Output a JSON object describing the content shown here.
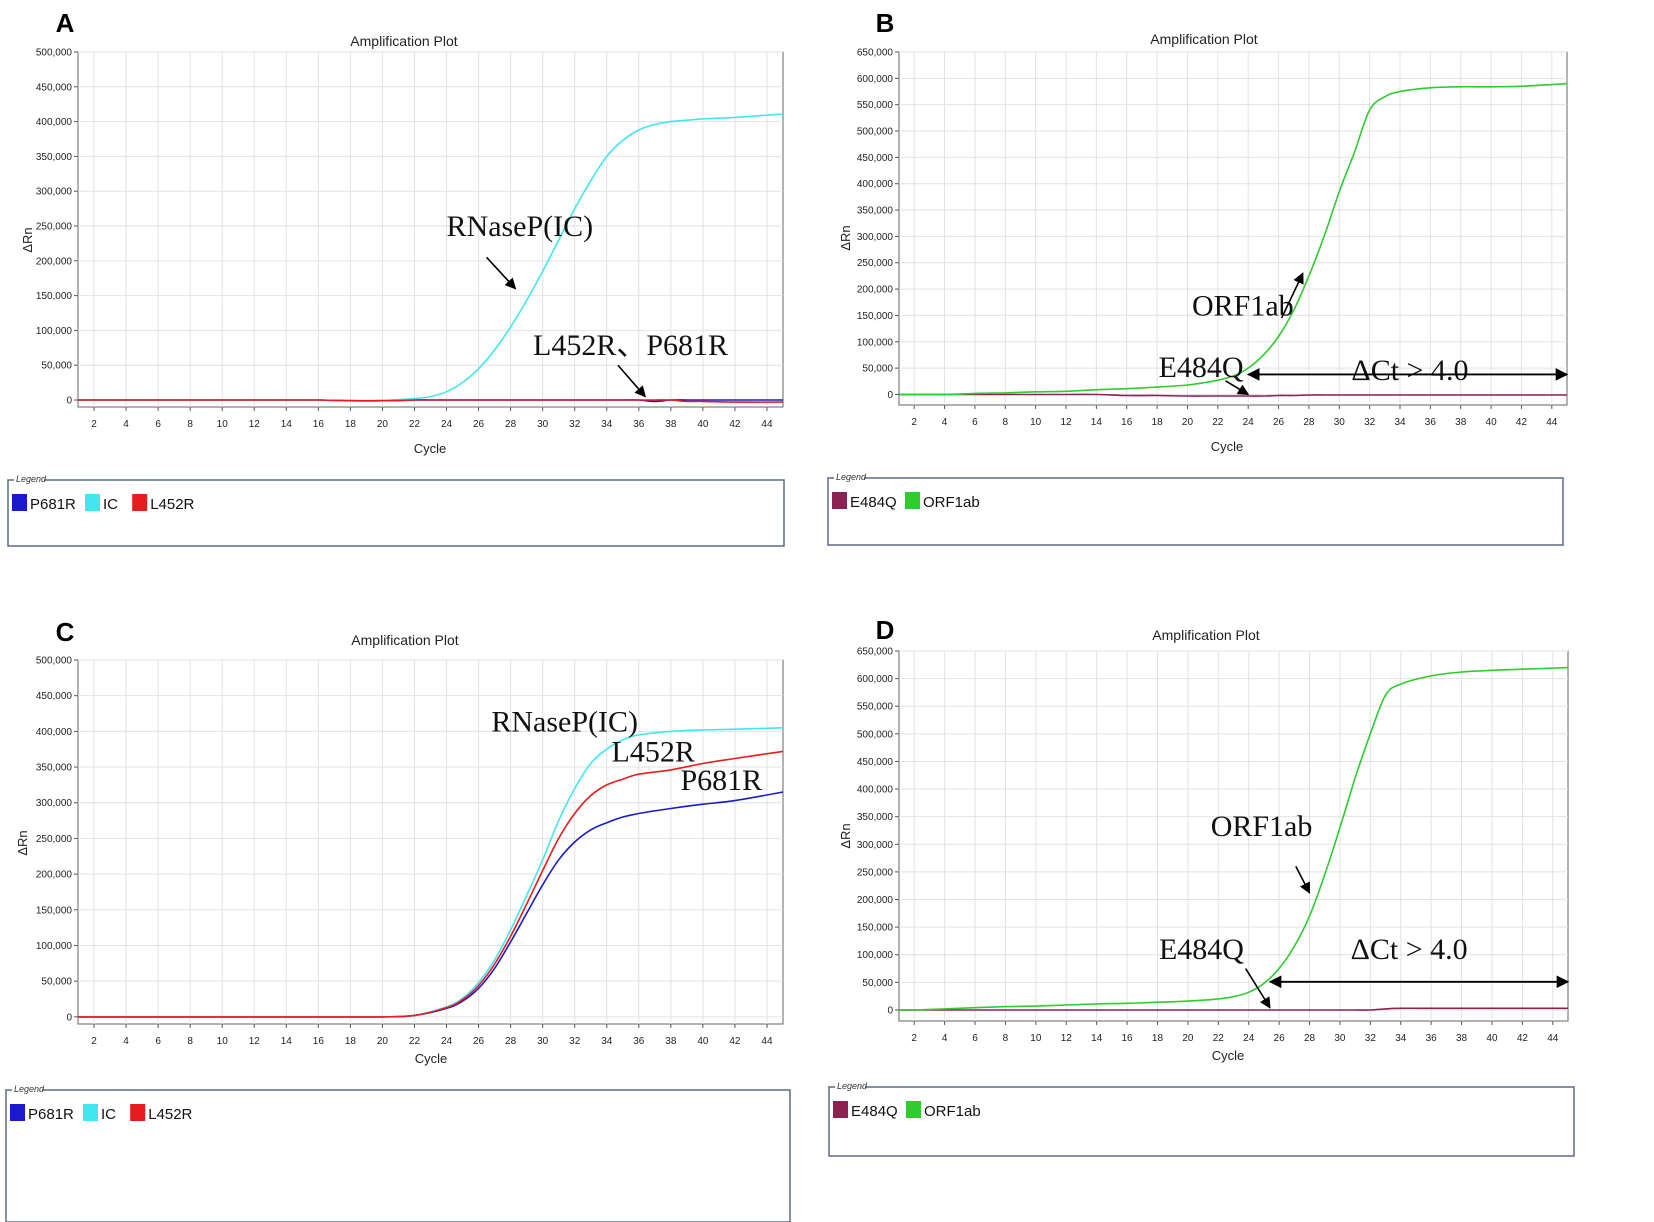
{
  "chart_data": [
    {
      "panel": "A",
      "type": "line",
      "title": "Amplification Plot",
      "xlabel": "Cycle",
      "ylabel": "ΔRn",
      "xlim": [
        1,
        45
      ],
      "ylim": [
        -10000,
        500000
      ],
      "y_ticks": [
        0,
        50000,
        100000,
        150000,
        200000,
        250000,
        300000,
        350000,
        400000,
        450000,
        500000
      ],
      "y_tick_labels": [
        "0",
        "50,000",
        "100,000",
        "150,000",
        "200,000",
        "250,000",
        "300,000",
        "350,000",
        "400,000",
        "450,000",
        "500,000"
      ],
      "x_ticks": [
        2,
        4,
        6,
        8,
        10,
        12,
        14,
        16,
        18,
        20,
        22,
        24,
        26,
        28,
        30,
        32,
        34,
        36,
        38,
        40,
        42,
        44
      ],
      "grid": true,
      "x": [
        1,
        2,
        4,
        6,
        8,
        10,
        12,
        14,
        16,
        18,
        20,
        22,
        23,
        24,
        25,
        26,
        27,
        28,
        29,
        30,
        31,
        32,
        33,
        34,
        35,
        36,
        37,
        38,
        39,
        40,
        42,
        45
      ],
      "series": [
        {
          "name": "P681R",
          "color": "#1a1acc",
          "values": [
            0,
            0,
            0,
            0,
            0,
            0,
            0,
            0,
            0,
            -1000,
            -1000,
            0,
            0,
            0,
            0,
            0,
            0,
            0,
            0,
            0,
            0,
            0,
            0,
            0,
            0,
            0,
            -2000,
            0,
            0,
            0,
            0,
            0
          ]
        },
        {
          "name": "IC",
          "color": "#40e8ee",
          "values": [
            0,
            0,
            0,
            0,
            0,
            0,
            0,
            0,
            0,
            -1000,
            -500,
            2000,
            5000,
            12000,
            25000,
            45000,
            72000,
            105000,
            143000,
            185000,
            230000,
            275000,
            315000,
            350000,
            373000,
            388000,
            396000,
            400000,
            402000,
            404000,
            406000,
            411000
          ]
        },
        {
          "name": "L452R",
          "color": "#e81c1c",
          "values": [
            0,
            0,
            0,
            0,
            0,
            0,
            0,
            0,
            0,
            -1000,
            -1000,
            0,
            0,
            0,
            0,
            0,
            0,
            0,
            0,
            0,
            0,
            0,
            0,
            0,
            0,
            0,
            0,
            0,
            -2000,
            -2000,
            -3000,
            -3000
          ]
        }
      ],
      "annotations": [
        {
          "text": "RNaseP(IC)",
          "x": 24.0,
          "y": 236000,
          "arrow_from": [
            26.5,
            205000
          ],
          "arrow_to": [
            28.3,
            160000
          ]
        },
        {
          "text": "L452R、P681R",
          "x": 29.4,
          "y": 65000,
          "arrow_from": [
            34.7,
            50000
          ],
          "arrow_to": [
            36.4,
            5000
          ]
        }
      ],
      "legend": [
        "P681R",
        "IC",
        "L452R"
      ],
      "legend_title": "Legend"
    },
    {
      "panel": "B",
      "type": "line",
      "title": "Amplification Plot",
      "xlabel": "Cycle",
      "ylabel": "ΔRn",
      "xlim": [
        1,
        45
      ],
      "ylim": [
        -20000,
        650000
      ],
      "y_ticks": [
        0,
        50000,
        100000,
        150000,
        200000,
        250000,
        300000,
        350000,
        400000,
        450000,
        500000,
        550000,
        600000,
        650000
      ],
      "y_tick_labels": [
        "0",
        "50,000",
        "100,000",
        "150,000",
        "200,000",
        "250,000",
        "300,000",
        "350,000",
        "400,000",
        "450,000",
        "500,000",
        "550,000",
        "600,000",
        "650,000"
      ],
      "x_ticks": [
        2,
        4,
        6,
        8,
        10,
        12,
        14,
        16,
        18,
        20,
        22,
        24,
        26,
        28,
        30,
        32,
        34,
        36,
        38,
        40,
        42,
        44
      ],
      "grid": true,
      "x": [
        1,
        2,
        4,
        6,
        8,
        10,
        12,
        14,
        16,
        18,
        20,
        21,
        22,
        23,
        24,
        25,
        26,
        27,
        28,
        29,
        30,
        31,
        32,
        33,
        34,
        36,
        38,
        40,
        42,
        45
      ],
      "series": [
        {
          "name": "E484Q",
          "color": "#8b2252",
          "values": [
            0,
            0,
            0,
            0,
            0,
            0,
            0,
            0,
            -2000,
            -2000,
            -3000,
            -3000,
            -3000,
            -3000,
            -3000,
            -3000,
            -2000,
            -2000,
            -1000,
            -1000,
            -1000,
            -1000,
            -1000,
            -1000,
            -1000,
            -1000,
            -1000,
            -1000,
            -1000,
            -1000
          ]
        },
        {
          "name": "ORF1ab",
          "color": "#2ecc2e",
          "values": [
            0,
            0,
            0,
            2000,
            3000,
            5000,
            6000,
            9000,
            11000,
            14000,
            18000,
            22000,
            27000,
            35000,
            50000,
            75000,
            110000,
            160000,
            225000,
            300000,
            385000,
            460000,
            540000,
            565000,
            575000,
            582000,
            584000,
            584000,
            585000,
            590000
          ]
        }
      ],
      "annotations": [
        {
          "text": "ORF1ab",
          "x": 20.3,
          "y": 150000,
          "arrow_from": [
            26.2,
            145000
          ],
          "arrow_to": [
            27.6,
            230000
          ]
        },
        {
          "text": "E484Q",
          "x": 18.1,
          "y": 33000,
          "arrow_from": [
            22.5,
            26000
          ],
          "arrow_to": [
            24.0,
            0
          ]
        },
        {
          "text": "ΔCt > 4.0",
          "x": 30.8,
          "y": 27000,
          "span": [
            24.0,
            45.0
          ],
          "span_y": 38000
        }
      ],
      "legend": [
        "E484Q",
        "ORF1ab"
      ],
      "legend_title": "Legend"
    },
    {
      "panel": "C",
      "type": "line",
      "title": "Amplification Plot",
      "xlabel": "Cycle",
      "ylabel": "ΔRn",
      "xlim": [
        1,
        45
      ],
      "ylim": [
        -10000,
        500000
      ],
      "y_ticks": [
        0,
        50000,
        100000,
        150000,
        200000,
        250000,
        300000,
        350000,
        400000,
        450000,
        500000
      ],
      "y_tick_labels": [
        "0",
        "50,000",
        "100,000",
        "150,000",
        "200,000",
        "250,000",
        "300,000",
        "350,000",
        "400,000",
        "450,000",
        "500,000"
      ],
      "x_ticks": [
        2,
        4,
        6,
        8,
        10,
        12,
        14,
        16,
        18,
        20,
        22,
        24,
        26,
        28,
        30,
        32,
        34,
        36,
        38,
        40,
        42,
        44
      ],
      "grid": true,
      "x": [
        1,
        2,
        4,
        6,
        8,
        10,
        12,
        14,
        16,
        18,
        20,
        22,
        24,
        25,
        26,
        27,
        28,
        29,
        30,
        31,
        32,
        33,
        34,
        35,
        36,
        38,
        40,
        42,
        45
      ],
      "series": [
        {
          "name": "P681R",
          "color": "#1a1acc",
          "values": [
            0,
            0,
            0,
            0,
            0,
            0,
            0,
            0,
            0,
            0,
            0,
            2000,
            12000,
            22000,
            40000,
            68000,
            105000,
            145000,
            185000,
            220000,
            245000,
            262000,
            272000,
            280000,
            285000,
            292000,
            298000,
            303000,
            315000
          ]
        },
        {
          "name": "IC",
          "color": "#40e8ee",
          "values": [
            0,
            0,
            0,
            0,
            0,
            0,
            0,
            0,
            0,
            0,
            0,
            2000,
            14000,
            26000,
            48000,
            80000,
            122000,
            170000,
            220000,
            275000,
            320000,
            355000,
            375000,
            388000,
            395000,
            400000,
            402000,
            403000,
            405000
          ]
        },
        {
          "name": "L452R",
          "color": "#e81c1c",
          "values": [
            0,
            0,
            0,
            0,
            0,
            0,
            0,
            0,
            0,
            0,
            0,
            2000,
            13000,
            24000,
            44000,
            74000,
            113000,
            158000,
            205000,
            250000,
            285000,
            310000,
            325000,
            333000,
            340000,
            346000,
            355000,
            362000,
            372000
          ]
        }
      ],
      "annotations": [
        {
          "text": "RNaseP(IC)",
          "x": 26.8,
          "y": 400000
        },
        {
          "text": "L452R",
          "x": 34.3,
          "y": 358000
        },
        {
          "text": "P681R",
          "x": 38.6,
          "y": 318000
        }
      ],
      "legend": [
        "P681R",
        "IC",
        "L452R"
      ],
      "legend_title": "Legend"
    },
    {
      "panel": "D",
      "type": "line",
      "title": "Amplification Plot",
      "xlabel": "Cycle",
      "ylabel": "ΔRn",
      "xlim": [
        1,
        45
      ],
      "ylim": [
        -20000,
        650000
      ],
      "y_ticks": [
        0,
        50000,
        100000,
        150000,
        200000,
        250000,
        300000,
        350000,
        400000,
        450000,
        500000,
        550000,
        600000,
        650000
      ],
      "y_tick_labels": [
        "0",
        "50,000",
        "100,000",
        "150,000",
        "200,000",
        "250,000",
        "300,000",
        "350,000",
        "400,000",
        "450,000",
        "500,000",
        "550,000",
        "600,000",
        "650,000"
      ],
      "x_ticks": [
        2,
        4,
        6,
        8,
        10,
        12,
        14,
        16,
        18,
        20,
        22,
        24,
        26,
        28,
        30,
        32,
        34,
        36,
        38,
        40,
        42,
        44
      ],
      "grid": true,
      "x": [
        1,
        2,
        4,
        6,
        8,
        10,
        12,
        14,
        16,
        18,
        20,
        22,
        23,
        24,
        25,
        26,
        27,
        28,
        29,
        30,
        31,
        32,
        33,
        34,
        36,
        38,
        40,
        42,
        45
      ],
      "series": [
        {
          "name": "E484Q",
          "color": "#8b2252",
          "values": [
            0,
            0,
            0,
            0,
            0,
            0,
            0,
            0,
            0,
            0,
            0,
            0,
            0,
            0,
            0,
            0,
            0,
            0,
            0,
            0,
            0,
            0,
            2000,
            3000,
            3000,
            3000,
            3000,
            3000,
            3000
          ]
        },
        {
          "name": "ORF1ab",
          "color": "#2ecc2e",
          "values": [
            0,
            0,
            2000,
            4000,
            6000,
            7000,
            9000,
            11000,
            12000,
            14000,
            16000,
            20000,
            24000,
            32000,
            48000,
            75000,
            115000,
            170000,
            245000,
            330000,
            420000,
            500000,
            570000,
            590000,
            605000,
            612000,
            615000,
            617000,
            620000
          ]
        }
      ],
      "annotations": [
        {
          "text": "ORF1ab",
          "x": 21.5,
          "y": 315000,
          "arrow_from": [
            27.1,
            260000
          ],
          "arrow_to": [
            28.0,
            212000
          ]
        },
        {
          "text": "E484Q",
          "x": 18.1,
          "y": 92000,
          "arrow_from": [
            23.8,
            75000
          ],
          "arrow_to": [
            25.4,
            4000
          ]
        },
        {
          "text": "ΔCt > 4.0",
          "x": 30.7,
          "y": 92000,
          "span": [
            25.4,
            45.0
          ],
          "span_y": 51000
        }
      ],
      "legend": [
        "E484Q",
        "ORF1ab"
      ],
      "legend_title": "Legend"
    }
  ]
}
